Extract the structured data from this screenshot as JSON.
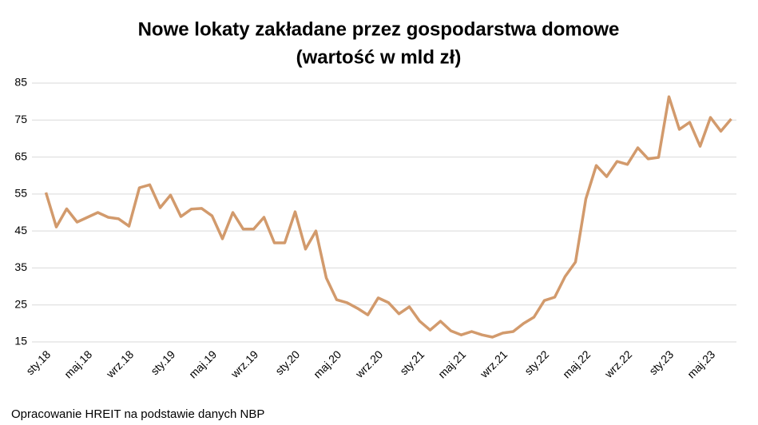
{
  "chart_data": {
    "type": "line",
    "title": "Nowe lokaty zakładane przez gospodarstwa domowe",
    "subtitle": "(wartość w mld zł)",
    "source": "Opracowanie HREIT na podstawie danych NBP",
    "categories": [
      "sty.18",
      null,
      null,
      null,
      "maj.18",
      null,
      null,
      null,
      "wrz.18",
      null,
      null,
      null,
      "sty.19",
      null,
      null,
      null,
      "maj.19",
      null,
      null,
      null,
      "wrz.19",
      null,
      null,
      null,
      "sty.20",
      null,
      null,
      null,
      "maj.20",
      null,
      null,
      null,
      "wrz.20",
      null,
      null,
      null,
      "sty.21",
      null,
      null,
      null,
      "maj.21",
      null,
      null,
      null,
      "wrz.21",
      null,
      null,
      null,
      "sty.22",
      null,
      null,
      null,
      "maj.22",
      null,
      null,
      null,
      "wrz.22",
      null,
      null,
      null,
      "sty.23",
      null,
      null,
      null,
      "maj.23",
      null,
      null
    ],
    "values": [
      55.4,
      46.1,
      51,
      47.4,
      48.7,
      50,
      48.7,
      48.3,
      46.3,
      56.7,
      57.5,
      51.3,
      54.7,
      48.9,
      50.9,
      51.1,
      49.1,
      42.9,
      50,
      45.5,
      45.5,
      48.7,
      41.8,
      41.8,
      50.2,
      40.1,
      45,
      32.3,
      26.4,
      25.6,
      24.1,
      22.3,
      26.9,
      25.6,
      22.6,
      24.5,
      20.6,
      18.2,
      20.6,
      18,
      16.9,
      17.8,
      16.9,
      16.3,
      17.4,
      17.8,
      20,
      21.7,
      26.2,
      27.1,
      32.7,
      36.6,
      53.7,
      62.7,
      59.7,
      63.8,
      63,
      67.5,
      64.5,
      64.9,
      81.3,
      72.5,
      74.4,
      67.9,
      75.7,
      72,
      75.3
    ],
    "color": "#d29a6c",
    "ylim": [
      15,
      85
    ],
    "yticks": [
      15,
      25,
      35,
      45,
      55,
      65,
      75,
      85
    ],
    "grid": true
  }
}
